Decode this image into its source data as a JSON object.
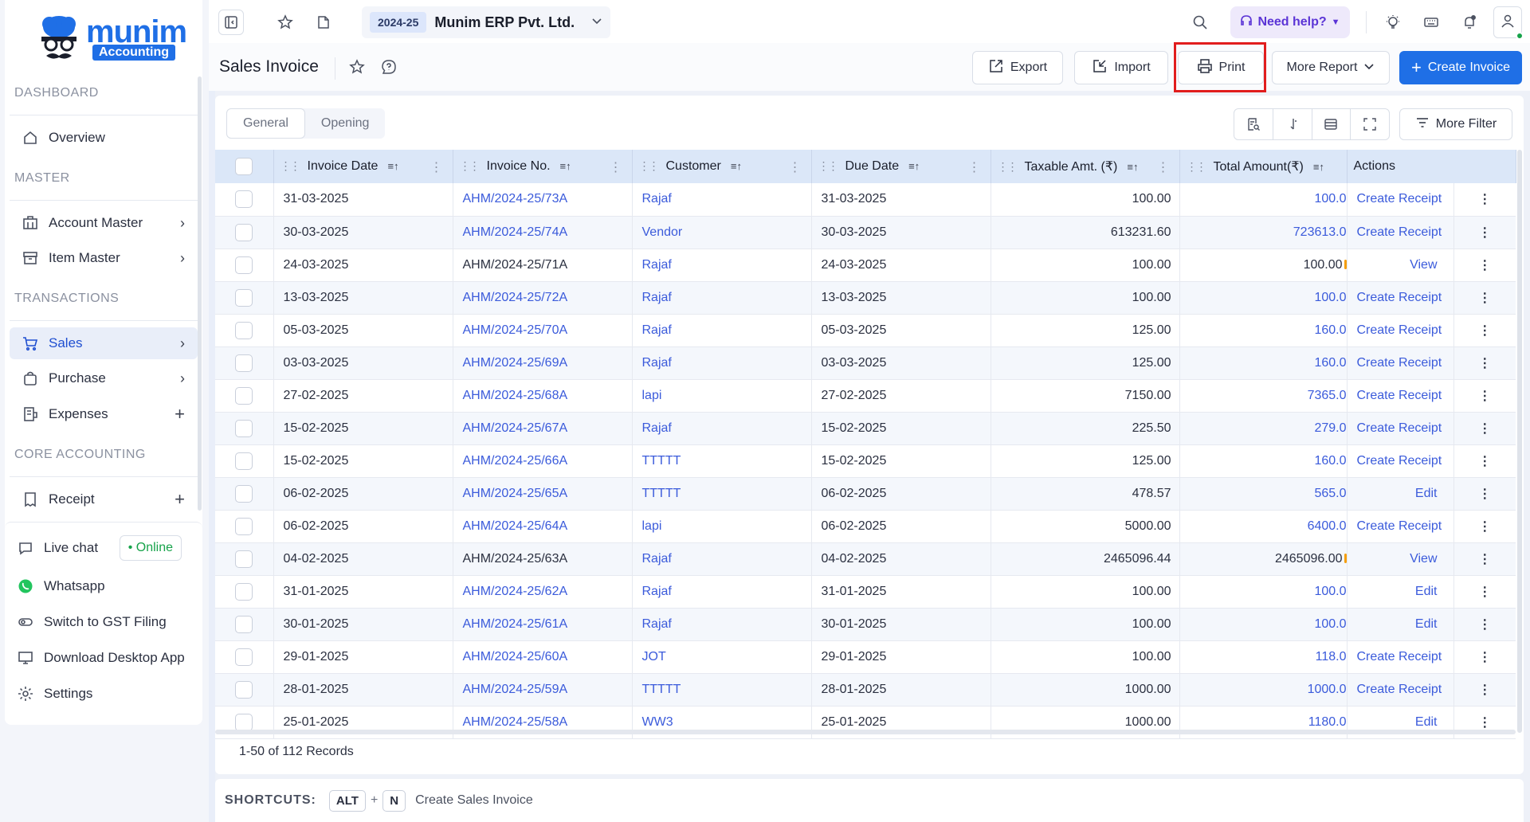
{
  "brand": {
    "name": "munim",
    "tag": "Accounting"
  },
  "sidebar": {
    "sections": {
      "dashboard": "DASHBOARD",
      "master": "MASTER",
      "transactions": "TRANSACTIONS",
      "core": "CORE ACCOUNTING"
    },
    "items": {
      "overview": "Overview",
      "account_master": "Account Master",
      "item_master": "Item Master",
      "sales": "Sales",
      "purchase": "Purchase",
      "expenses": "Expenses",
      "receipt": "Receipt"
    },
    "bottom": {
      "live_chat": "Live chat",
      "online": "• Online",
      "whatsapp": "Whatsapp",
      "switch_gst": "Switch to GST Filing",
      "download": "Download Desktop App",
      "settings": "Settings"
    }
  },
  "topbar": {
    "fy": "2024-25",
    "company": "Munim ERP Pvt. Ltd.",
    "help": "Need help?"
  },
  "page": {
    "title": "Sales Invoice",
    "buttons": {
      "export": "Export",
      "import": "Import",
      "print": "Print",
      "more_report": "More Report",
      "create_invoice": "Create Invoice"
    }
  },
  "tabs": {
    "general": "General",
    "opening": "Opening"
  },
  "more_filter": "More Filter",
  "table": {
    "columns": {
      "invoice_date": "Invoice Date",
      "invoice_no": "Invoice No.",
      "customer": "Customer",
      "due_date": "Due Date",
      "taxable": "Taxable Amt. (₹)",
      "total": "Total Amount(₹)",
      "actions": "Actions"
    },
    "rows": [
      {
        "date": "31-03-2025",
        "no": "AHM/2024-25/73A",
        "no_link": true,
        "customer": "Rajaf",
        "due": "31-03-2025",
        "taxable": "100.00",
        "total": "100.0",
        "total_link": true,
        "action": "Create Receipt"
      },
      {
        "date": "30-03-2025",
        "no": "AHM/2024-25/74A",
        "no_link": true,
        "customer": "Vendor",
        "due": "30-03-2025",
        "taxable": "613231.60",
        "total": "723613.0",
        "total_link": true,
        "action": "Create Receipt"
      },
      {
        "date": "24-03-2025",
        "no": "AHM/2024-25/71A",
        "no_link": false,
        "customer": "Rajaf",
        "due": "24-03-2025",
        "taxable": "100.00",
        "total": "100.00",
        "total_link": false,
        "action": "View"
      },
      {
        "date": "13-03-2025",
        "no": "AHM/2024-25/72A",
        "no_link": true,
        "customer": "Rajaf",
        "due": "13-03-2025",
        "taxable": "100.00",
        "total": "100.0",
        "total_link": true,
        "action": "Create Receipt"
      },
      {
        "date": "05-03-2025",
        "no": "AHM/2024-25/70A",
        "no_link": true,
        "customer": "Rajaf",
        "due": "05-03-2025",
        "taxable": "125.00",
        "total": "160.0",
        "total_link": true,
        "action": "Create Receipt"
      },
      {
        "date": "03-03-2025",
        "no": "AHM/2024-25/69A",
        "no_link": true,
        "customer": "Rajaf",
        "due": "03-03-2025",
        "taxable": "125.00",
        "total": "160.0",
        "total_link": true,
        "action": "Create Receipt"
      },
      {
        "date": "27-02-2025",
        "no": "AHM/2024-25/68A",
        "no_link": true,
        "customer": "lapi",
        "due": "27-02-2025",
        "taxable": "7150.00",
        "total": "7365.0",
        "total_link": true,
        "action": "Create Receipt"
      },
      {
        "date": "15-02-2025",
        "no": "AHM/2024-25/67A",
        "no_link": true,
        "customer": "Rajaf",
        "due": "15-02-2025",
        "taxable": "225.50",
        "total": "279.0",
        "total_link": true,
        "action": "Create Receipt"
      },
      {
        "date": "15-02-2025",
        "no": "AHM/2024-25/66A",
        "no_link": true,
        "customer": "TTTTT",
        "due": "15-02-2025",
        "taxable": "125.00",
        "total": "160.0",
        "total_link": true,
        "action": "Create Receipt"
      },
      {
        "date": "06-02-2025",
        "no": "AHM/2024-25/65A",
        "no_link": true,
        "customer": "TTTTT",
        "due": "06-02-2025",
        "taxable": "478.57",
        "total": "565.0",
        "total_link": true,
        "action": "Edit"
      },
      {
        "date": "06-02-2025",
        "no": "AHM/2024-25/64A",
        "no_link": true,
        "customer": "lapi",
        "due": "06-02-2025",
        "taxable": "5000.00",
        "total": "6400.0",
        "total_link": true,
        "action": "Create Receipt"
      },
      {
        "date": "04-02-2025",
        "no": "AHM/2024-25/63A",
        "no_link": false,
        "customer": "Rajaf",
        "due": "04-02-2025",
        "taxable": "2465096.44",
        "total": "2465096.00",
        "total_link": false,
        "action": "View"
      },
      {
        "date": "31-01-2025",
        "no": "AHM/2024-25/62A",
        "no_link": true,
        "customer": "Rajaf",
        "due": "31-01-2025",
        "taxable": "100.00",
        "total": "100.0",
        "total_link": true,
        "action": "Edit"
      },
      {
        "date": "30-01-2025",
        "no": "AHM/2024-25/61A",
        "no_link": true,
        "customer": "Rajaf",
        "due": "30-01-2025",
        "taxable": "100.00",
        "total": "100.0",
        "total_link": true,
        "action": "Edit"
      },
      {
        "date": "29-01-2025",
        "no": "AHM/2024-25/60A",
        "no_link": true,
        "customer": "JOT",
        "due": "29-01-2025",
        "taxable": "100.00",
        "total": "118.0",
        "total_link": true,
        "action": "Create Receipt"
      },
      {
        "date": "28-01-2025",
        "no": "AHM/2024-25/59A",
        "no_link": true,
        "customer": "TTTTT",
        "due": "28-01-2025",
        "taxable": "1000.00",
        "total": "1000.0",
        "total_link": true,
        "action": "Create Receipt"
      },
      {
        "date": "25-01-2025",
        "no": "AHM/2024-25/58A",
        "no_link": true,
        "customer": "WW3",
        "due": "25-01-2025",
        "taxable": "1000.00",
        "total": "1180.0",
        "total_link": true,
        "action": "Edit"
      }
    ]
  },
  "records": "1-50 of 112 Records",
  "shortcuts": {
    "label": "SHORTCUTS:",
    "key1": "ALT",
    "plus": "+",
    "key2": "N",
    "desc": "Create Sales Invoice"
  }
}
